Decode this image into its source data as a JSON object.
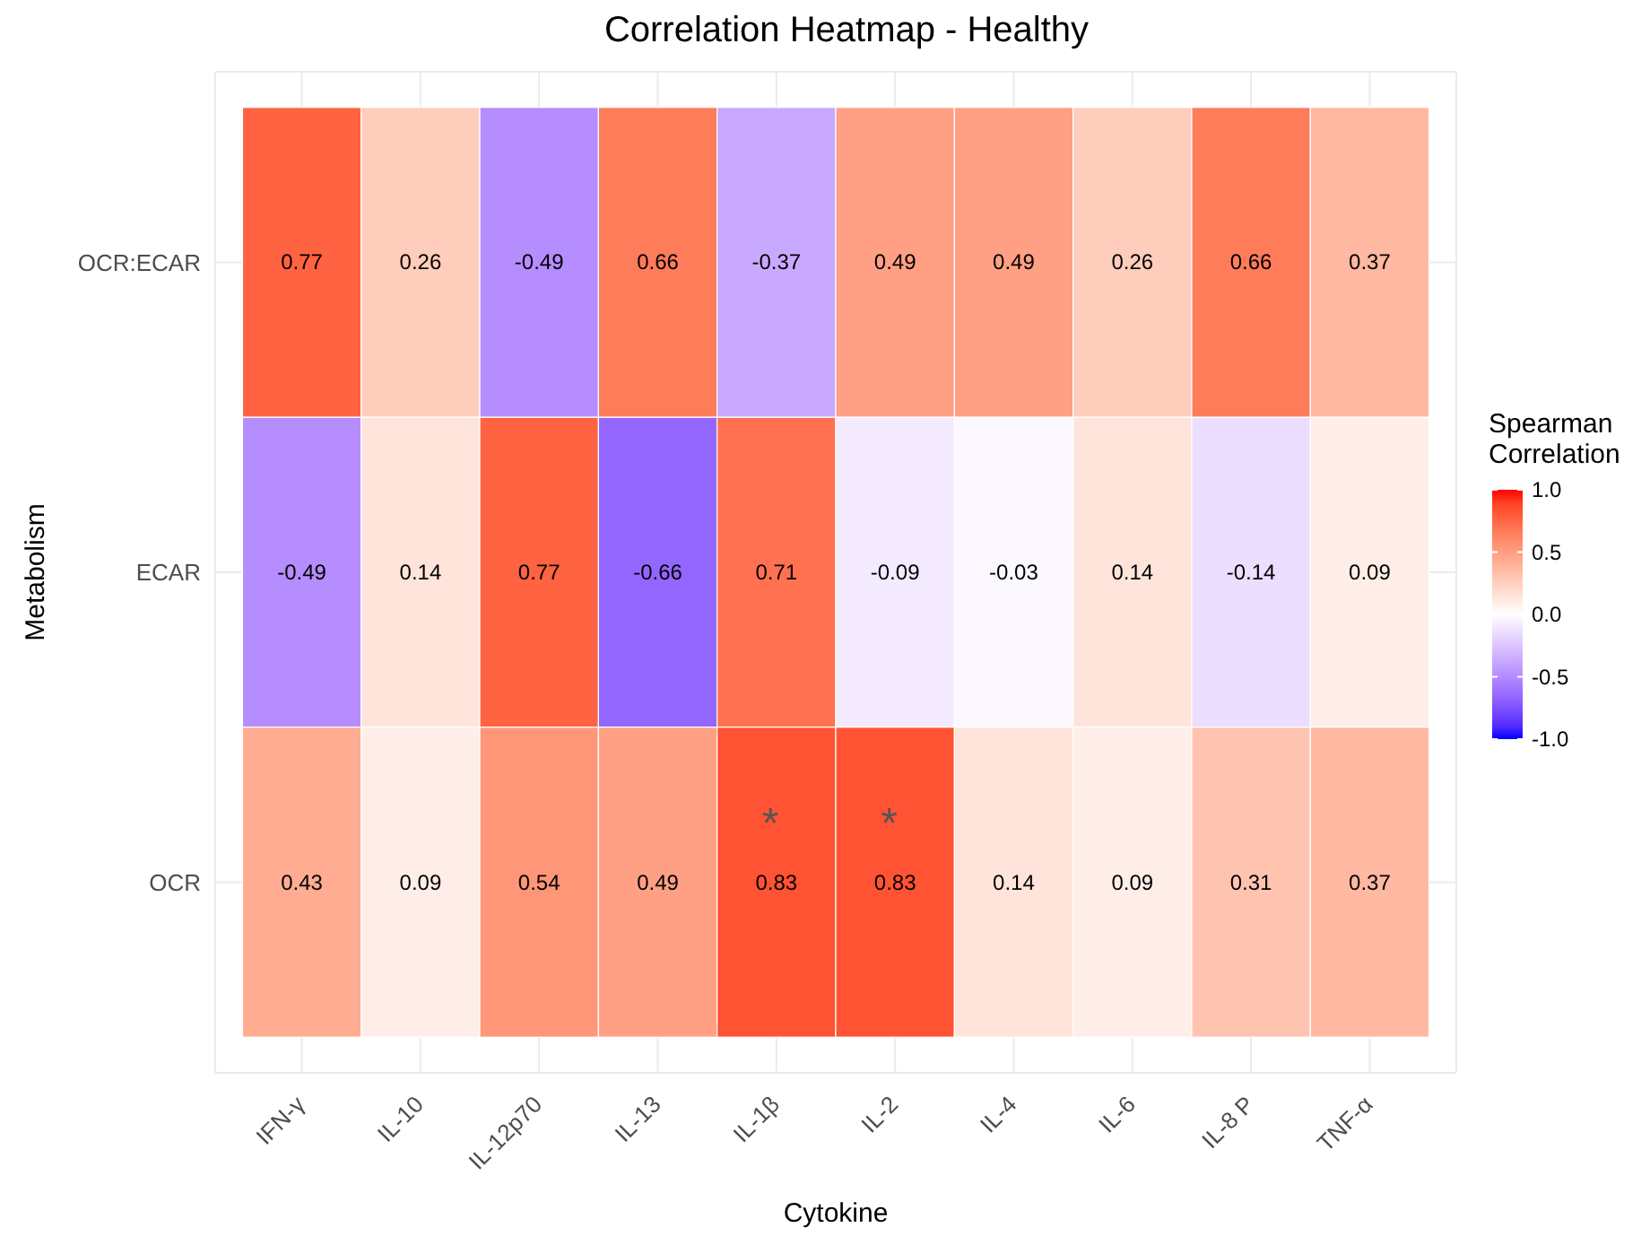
{
  "chart_data": {
    "type": "heatmap",
    "title": "Correlation Heatmap - Healthy",
    "xlabel": "Cytokine",
    "ylabel": "Metabolism",
    "legend_title": "Spearman\nCorrelation",
    "categories": [
      "IFN-γ",
      "IL-10",
      "IL-12p70",
      "IL-13",
      "IL-1β",
      "IL-2",
      "IL-4",
      "IL-6",
      "IL-8 P",
      "TNF-α"
    ],
    "y_categories": [
      "OCR:ECAR",
      "ECAR",
      "OCR"
    ],
    "cells": [
      [
        0.77,
        0.26,
        -0.49,
        0.66,
        -0.37,
        0.49,
        0.49,
        0.26,
        0.66,
        0.37
      ],
      [
        -0.49,
        0.14,
        0.77,
        -0.66,
        0.71,
        -0.09,
        -0.03,
        0.14,
        -0.14,
        0.09
      ],
      [
        0.43,
        0.09,
        0.54,
        0.49,
        0.83,
        0.83,
        0.14,
        0.09,
        0.31,
        0.37
      ]
    ],
    "cell_labels": [
      [
        "0.77",
        "0.26",
        "-0.49",
        "0.66",
        "-0.37",
        "0.49",
        "0.49",
        "0.26",
        "0.66",
        "0.37"
      ],
      [
        "-0.49",
        "0.14",
        "0.77",
        "-0.66",
        "0.71",
        "-0.09",
        "-0.03",
        "0.14",
        "-0.14",
        "0.09"
      ],
      [
        "0.43",
        "0.09",
        "0.54",
        "0.49",
        "*\n0.83",
        "*\n0.83",
        "0.14",
        "0.09",
        "0.31",
        "0.37"
      ]
    ],
    "clim": [
      -1,
      1
    ],
    "cticks": [
      {
        "value": 1,
        "label": "1.0"
      },
      {
        "value": 0.5,
        "label": "0.5"
      },
      {
        "value": 0,
        "label": "0.0"
      },
      {
        "value": -0.5,
        "label": "-0.5"
      },
      {
        "value": -1,
        "label": "-1.0"
      }
    ],
    "grid": true
  }
}
